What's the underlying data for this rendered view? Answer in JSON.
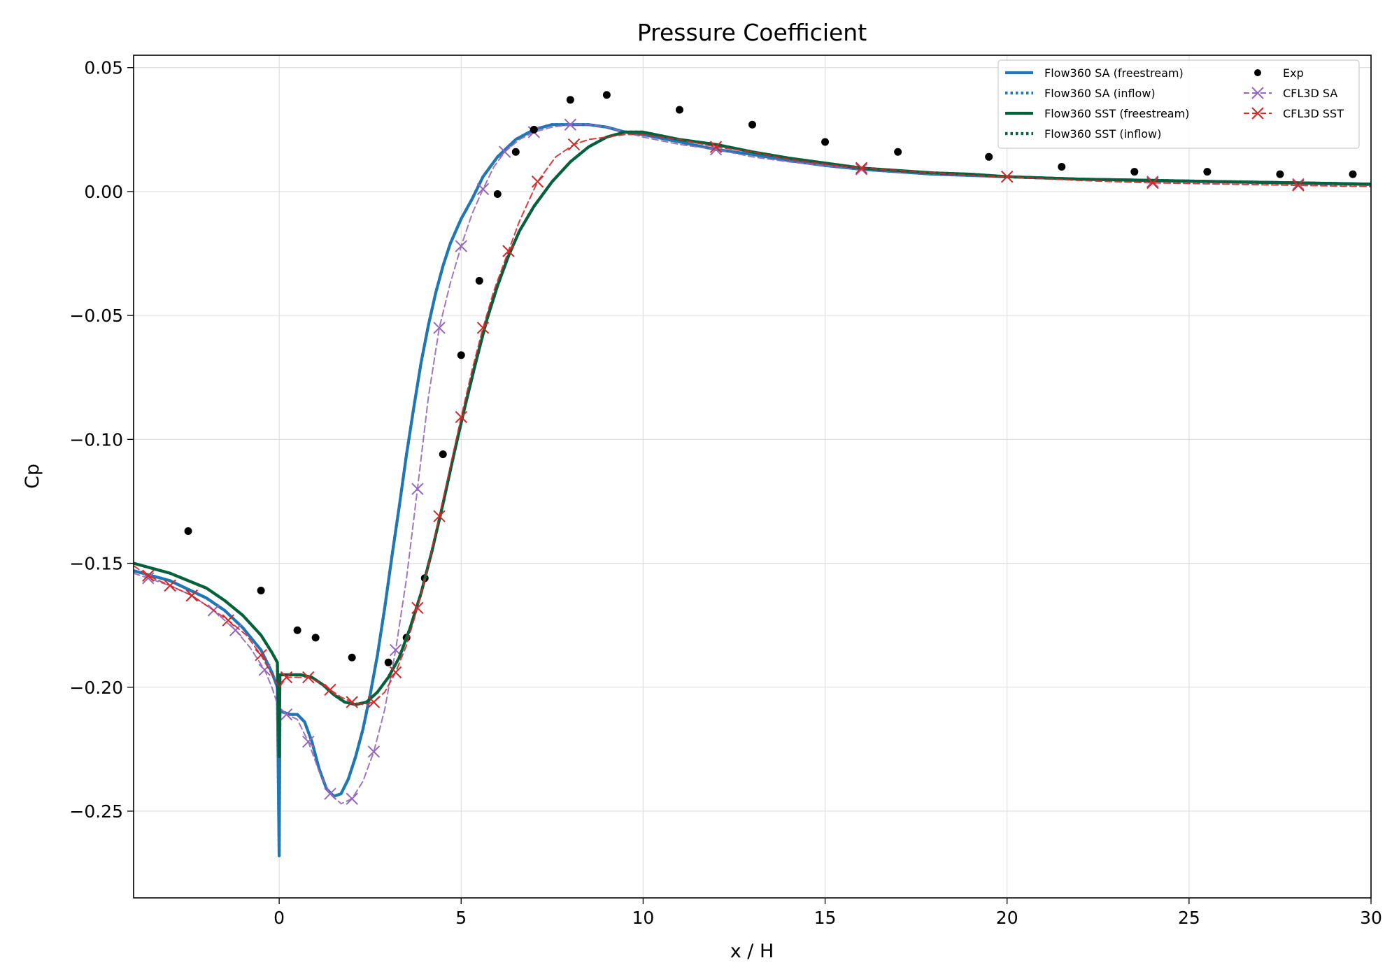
{
  "chart_data": {
    "type": "line",
    "title": "Pressure Coefficient",
    "xlabel": "x / H",
    "ylabel": "Cp",
    "xlim": [
      -4,
      30
    ],
    "ylim": [
      -0.285,
      0.055
    ],
    "xticks": [
      0,
      5,
      10,
      15,
      20,
      25,
      30
    ],
    "xtick_labels": [
      "0",
      "5",
      "10",
      "15",
      "20",
      "25",
      "30"
    ],
    "yticks": [
      0.05,
      0.0,
      -0.05,
      -0.1,
      -0.15,
      -0.2,
      -0.25
    ],
    "ytick_labels": [
      "0.05",
      "0.00",
      "−0.05",
      "−0.10",
      "−0.15",
      "−0.20",
      "−0.25"
    ],
    "grid": true,
    "legend_position": "top-right",
    "series": [
      {
        "name": "Flow360 SA (freestream)",
        "kind": "line",
        "style": "solid",
        "color": "#1f77b4",
        "x": [
          -4,
          -3,
          -2,
          -1.5,
          -1,
          -0.5,
          -0.2,
          -0.05,
          0,
          0.02,
          0.05,
          0.1,
          0.3,
          0.5,
          0.7,
          0.9,
          1.1,
          1.3,
          1.5,
          1.7,
          1.9,
          2.1,
          2.3,
          2.5,
          2.7,
          2.9,
          3.1,
          3.3,
          3.5,
          3.7,
          3.9,
          4.1,
          4.3,
          4.5,
          4.7,
          5.0,
          5.3,
          5.6,
          6.0,
          6.5,
          7.0,
          7.5,
          8.0,
          8.5,
          9.0,
          9.5,
          10,
          11,
          12,
          13,
          14,
          15,
          16,
          17,
          18,
          19,
          20,
          22,
          24,
          26,
          28,
          30
        ],
        "y": [
          -0.153,
          -0.157,
          -0.164,
          -0.169,
          -0.176,
          -0.185,
          -0.194,
          -0.2,
          -0.268,
          -0.21,
          -0.21,
          -0.21,
          -0.211,
          -0.211,
          -0.214,
          -0.222,
          -0.233,
          -0.241,
          -0.244,
          -0.243,
          -0.237,
          -0.228,
          -0.217,
          -0.203,
          -0.187,
          -0.168,
          -0.147,
          -0.127,
          -0.106,
          -0.087,
          -0.069,
          -0.054,
          -0.041,
          -0.03,
          -0.021,
          -0.011,
          -0.003,
          0.006,
          0.014,
          0.021,
          0.025,
          0.027,
          0.027,
          0.027,
          0.026,
          0.024,
          0.023,
          0.02,
          0.017,
          0.015,
          0.0125,
          0.0105,
          0.009,
          0.008,
          0.007,
          0.0065,
          0.006,
          0.005,
          0.0045,
          0.004,
          0.0035,
          0.003
        ]
      },
      {
        "name": "Flow360 SA (inflow)",
        "kind": "line",
        "style": "dotted",
        "color": "#1f77b4",
        "x": [
          -4,
          -3,
          -2,
          -1.5,
          -1,
          -0.5,
          -0.2,
          -0.05,
          0,
          0.02,
          0.05,
          0.1,
          0.3,
          0.5,
          0.7,
          0.9,
          1.1,
          1.3,
          1.5,
          1.7,
          1.9,
          2.1,
          2.3,
          2.5,
          2.7,
          2.9,
          3.1,
          3.3,
          3.5,
          3.7,
          3.9,
          4.1,
          4.3,
          4.5,
          4.7,
          5.0,
          5.3,
          5.6,
          6.0,
          6.5,
          7.0,
          7.5,
          8.0,
          8.5,
          9.0,
          9.5,
          10,
          11,
          12,
          13,
          14,
          15,
          16,
          17,
          18,
          19,
          20,
          22,
          24,
          26,
          28,
          30
        ],
        "y": [
          -0.153,
          -0.157,
          -0.164,
          -0.169,
          -0.176,
          -0.185,
          -0.194,
          -0.2,
          -0.268,
          -0.21,
          -0.21,
          -0.21,
          -0.211,
          -0.211,
          -0.214,
          -0.222,
          -0.233,
          -0.241,
          -0.244,
          -0.243,
          -0.237,
          -0.228,
          -0.217,
          -0.203,
          -0.187,
          -0.168,
          -0.147,
          -0.127,
          -0.106,
          -0.087,
          -0.069,
          -0.054,
          -0.041,
          -0.03,
          -0.021,
          -0.011,
          -0.003,
          0.006,
          0.014,
          0.021,
          0.025,
          0.027,
          0.027,
          0.027,
          0.026,
          0.024,
          0.023,
          0.02,
          0.017,
          0.015,
          0.0125,
          0.0105,
          0.009,
          0.008,
          0.007,
          0.0065,
          0.006,
          0.005,
          0.0045,
          0.004,
          0.0035,
          0.003
        ]
      },
      {
        "name": "Flow360 SST (freestream)",
        "kind": "line",
        "style": "solid",
        "color": "#04613b",
        "x": [
          -4,
          -3,
          -2,
          -1.5,
          -1,
          -0.5,
          -0.2,
          -0.05,
          0,
          0.02,
          0.05,
          0.3,
          0.6,
          0.9,
          1.2,
          1.5,
          1.8,
          2.1,
          2.4,
          2.7,
          3.0,
          3.3,
          3.6,
          3.9,
          4.2,
          4.5,
          4.8,
          5.1,
          5.4,
          5.7,
          6.0,
          6.3,
          6.6,
          7.0,
          7.5,
          8.0,
          8.5,
          9.0,
          9.5,
          10,
          11,
          12,
          13,
          14,
          15,
          16,
          17,
          18,
          19,
          20,
          22,
          24,
          26,
          28,
          30
        ],
        "y": [
          -0.15,
          -0.154,
          -0.16,
          -0.165,
          -0.171,
          -0.179,
          -0.186,
          -0.19,
          -0.228,
          -0.195,
          -0.195,
          -0.195,
          -0.195,
          -0.196,
          -0.199,
          -0.203,
          -0.206,
          -0.207,
          -0.206,
          -0.202,
          -0.196,
          -0.188,
          -0.176,
          -0.162,
          -0.145,
          -0.126,
          -0.106,
          -0.087,
          -0.069,
          -0.052,
          -0.038,
          -0.026,
          -0.016,
          -0.006,
          0.004,
          0.012,
          0.018,
          0.022,
          0.024,
          0.024,
          0.021,
          0.019,
          0.016,
          0.0135,
          0.0115,
          0.0095,
          0.0085,
          0.0075,
          0.007,
          0.006,
          0.005,
          0.0045,
          0.004,
          0.0035,
          0.003
        ]
      },
      {
        "name": "Flow360 SST (inflow)",
        "kind": "line",
        "style": "dotted",
        "color": "#04613b",
        "x": [
          -4,
          -3,
          -2,
          -1.5,
          -1,
          -0.5,
          -0.2,
          -0.05,
          0,
          0.02,
          0.05,
          0.3,
          0.6,
          0.9,
          1.2,
          1.5,
          1.8,
          2.1,
          2.4,
          2.7,
          3.0,
          3.3,
          3.6,
          3.9,
          4.2,
          4.5,
          4.8,
          5.1,
          5.4,
          5.7,
          6.0,
          6.3,
          6.6,
          7.0,
          7.5,
          8.0,
          8.5,
          9.0,
          9.5,
          10,
          11,
          12,
          13,
          14,
          15,
          16,
          17,
          18,
          19,
          20,
          22,
          24,
          26,
          28,
          30
        ],
        "y": [
          -0.15,
          -0.154,
          -0.16,
          -0.165,
          -0.171,
          -0.179,
          -0.186,
          -0.19,
          -0.228,
          -0.195,
          -0.195,
          -0.195,
          -0.195,
          -0.196,
          -0.199,
          -0.203,
          -0.206,
          -0.207,
          -0.206,
          -0.202,
          -0.196,
          -0.188,
          -0.176,
          -0.162,
          -0.145,
          -0.126,
          -0.106,
          -0.087,
          -0.069,
          -0.052,
          -0.038,
          -0.026,
          -0.016,
          -0.006,
          0.004,
          0.012,
          0.018,
          0.022,
          0.024,
          0.024,
          0.021,
          0.019,
          0.016,
          0.0135,
          0.0115,
          0.0095,
          0.0085,
          0.0075,
          0.007,
          0.006,
          0.005,
          0.0045,
          0.004,
          0.0035,
          0.003
        ]
      },
      {
        "name": "Exp",
        "kind": "scatter",
        "marker": "dot",
        "color": "#000000",
        "x": [
          -2.5,
          -0.5,
          0.5,
          1.0,
          2.0,
          3.0,
          3.5,
          4.0,
          4.5,
          5.0,
          5.5,
          6.0,
          6.5,
          7.0,
          8.0,
          9.0,
          11.0,
          13.0,
          15.0,
          17.0,
          19.5,
          21.5,
          23.5,
          25.5,
          27.5,
          29.5
        ],
        "y": [
          -0.137,
          -0.161,
          -0.177,
          -0.18,
          -0.188,
          -0.19,
          -0.18,
          -0.156,
          -0.106,
          -0.066,
          -0.036,
          -0.001,
          0.016,
          0.025,
          0.037,
          0.039,
          0.033,
          0.027,
          0.02,
          0.016,
          0.014,
          0.01,
          0.008,
          0.008,
          0.007,
          0.007
        ]
      },
      {
        "name": "CFL3D SA",
        "kind": "line-marker",
        "style": "dashed",
        "marker": "x",
        "color": "#9467bd",
        "x": [
          -4,
          -3.6,
          -3.0,
          -2.4,
          -1.8,
          -1.2,
          -0.8,
          -0.4,
          -0.2,
          0.0,
          0.2,
          0.5,
          0.8,
          1.1,
          1.4,
          1.7,
          2.0,
          2.3,
          2.6,
          2.9,
          3.2,
          3.5,
          3.8,
          4.1,
          4.4,
          4.7,
          5.0,
          5.3,
          5.6,
          5.9,
          6.2,
          6.6,
          7.0,
          7.5,
          8.0,
          8.5,
          9.0,
          9.5,
          10,
          11,
          12,
          13,
          14,
          15,
          16,
          17,
          18,
          19,
          20,
          22,
          24,
          26,
          28,
          30
        ],
        "y": [
          -0.154,
          -0.156,
          -0.159,
          -0.163,
          -0.169,
          -0.177,
          -0.184,
          -0.193,
          -0.2,
          -0.209,
          -0.211,
          -0.213,
          -0.222,
          -0.234,
          -0.243,
          -0.247,
          -0.245,
          -0.238,
          -0.226,
          -0.209,
          -0.185,
          -0.156,
          -0.12,
          -0.083,
          -0.055,
          -0.037,
          -0.022,
          -0.009,
          0.001,
          0.01,
          0.016,
          0.021,
          0.024,
          0.026,
          0.027,
          0.027,
          0.026,
          0.024,
          0.022,
          0.019,
          0.017,
          0.014,
          0.012,
          0.0105,
          0.009,
          0.008,
          0.007,
          0.0065,
          0.006,
          0.005,
          0.004,
          0.0035,
          0.003,
          0.0025
        ]
      },
      {
        "name": "CFL3D SST",
        "kind": "line-marker",
        "style": "dashed",
        "marker": "x",
        "color": "#d62728",
        "x": [
          -4,
          -3.6,
          -3.0,
          -2.4,
          -1.9,
          -1.4,
          -0.9,
          -0.5,
          -0.2,
          0.0,
          0.2,
          0.5,
          0.8,
          1.1,
          1.4,
          1.7,
          2.0,
          2.3,
          2.6,
          2.9,
          3.2,
          3.5,
          3.8,
          4.1,
          4.4,
          4.7,
          5.0,
          5.3,
          5.6,
          5.9,
          6.3,
          6.6,
          7.1,
          7.6,
          8.1,
          8.5,
          9.0,
          9.5,
          10,
          11,
          12,
          13,
          14,
          15,
          16,
          17,
          18,
          19,
          20,
          22,
          23,
          24,
          26,
          28,
          30
        ],
        "y": [
          -0.151,
          -0.155,
          -0.159,
          -0.163,
          -0.168,
          -0.173,
          -0.179,
          -0.187,
          -0.195,
          -0.2,
          -0.196,
          -0.196,
          -0.196,
          -0.198,
          -0.201,
          -0.204,
          -0.206,
          -0.207,
          -0.206,
          -0.202,
          -0.194,
          -0.183,
          -0.168,
          -0.151,
          -0.131,
          -0.111,
          -0.091,
          -0.072,
          -0.055,
          -0.04,
          -0.024,
          -0.012,
          0.004,
          0.014,
          0.019,
          0.021,
          0.022,
          0.023,
          0.023,
          0.021,
          0.018,
          0.016,
          0.013,
          0.011,
          0.0095,
          0.0085,
          0.0075,
          0.0065,
          0.006,
          0.0045,
          0.004,
          0.0035,
          0.003,
          0.0025,
          0.002
        ]
      }
    ]
  }
}
